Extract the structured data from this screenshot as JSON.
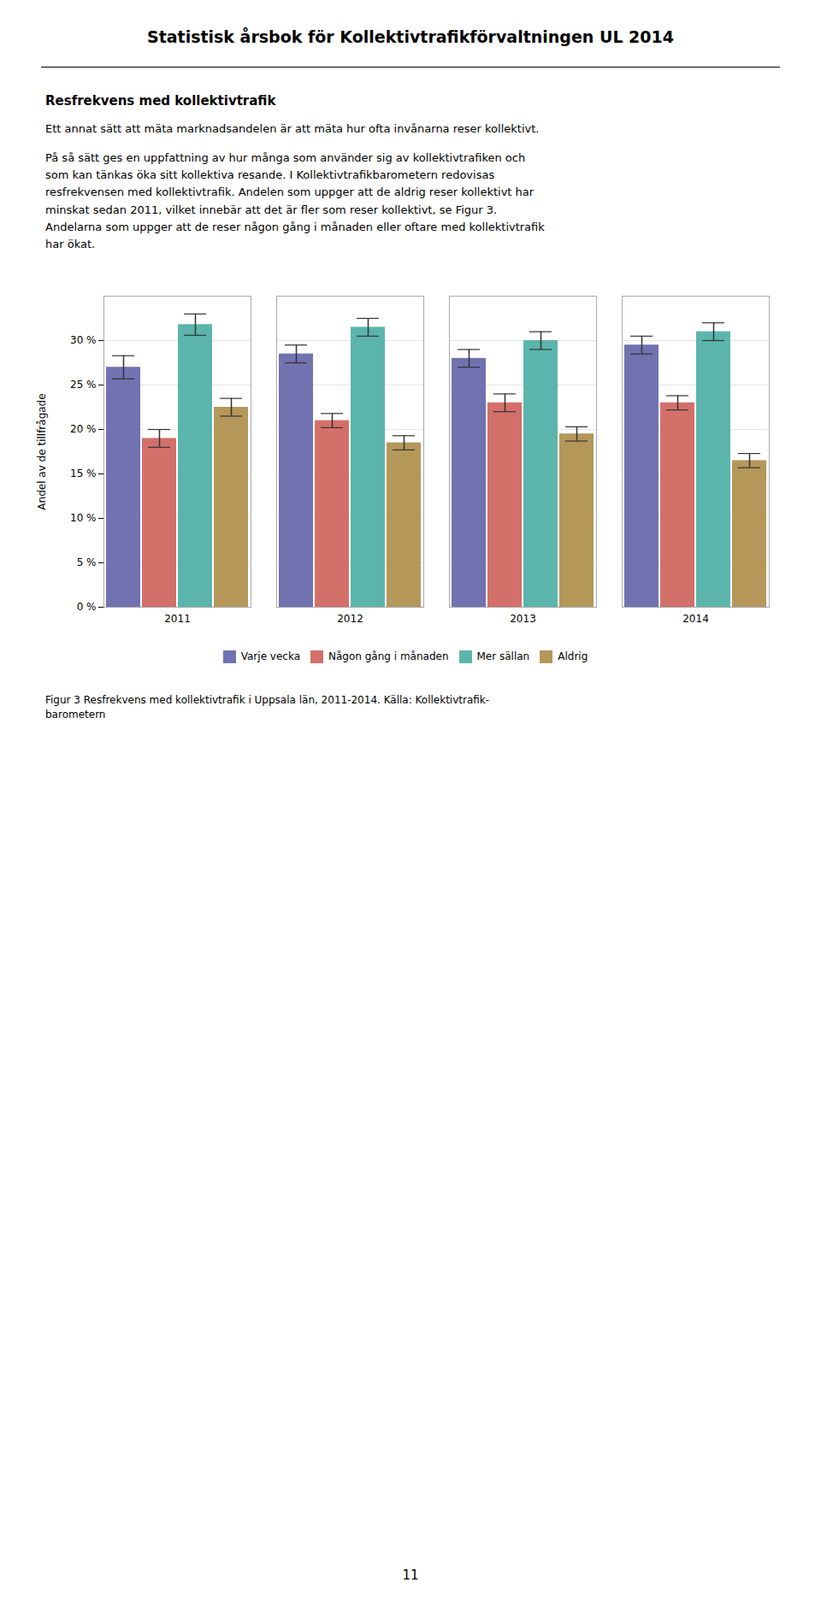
{
  "chart_data": {
    "type": "bar",
    "title": "Statistisk årsbok för Kollektivtrafikförvaltningen UL 2014",
    "subtitle": "Resfrekvens med kollektivtrafik",
    "annotations": [
      "Ett annat sätt att mäta marknadsandelen är att mäta hur ofta invånarna reser kollektivt.",
      "På så sätt ges en uppfattning av hur många som använder sig av kollektivtrafiken och\nsom kan tänkas öka sitt kollektiva resande. I Kollektivtrafikbarometern redovisas\nresfrekvensen med kollektivtrafik. Andelen som uppger att de aldrig reser kollektivt har\nminskat sedan 2011, vilket innebär att det är fler som reser kollektivt, se Figur 3.\nAndelarna som uppger att de reser någon gång i månaden eller oftare med kollektivtrafik\nhar ökat.",
      "Figur 3 Resfrekvens med kollektivtrafik i Uppsala län, 2011-2014. Källa: Kollektivtrafik-\nbarometern",
      "11"
    ],
    "ylabel": "Andel av de tillfrågade",
    "categories": [
      "2011",
      "2012",
      "2013",
      "2014"
    ],
    "series": [
      {
        "name": "Varje vecka",
        "color": "#7172b0",
        "values": [
          27.0,
          28.5,
          28.0,
          29.5
        ],
        "errors": [
          1.3,
          1.0,
          1.0,
          1.0
        ]
      },
      {
        "name": "Någon gång i månaden",
        "color": "#d4706a",
        "values": [
          19.0,
          21.0,
          23.0,
          23.0
        ],
        "errors": [
          1.0,
          0.8,
          1.0,
          0.8
        ]
      },
      {
        "name": "Mer sällan",
        "color": "#5bb5ac",
        "values": [
          31.8,
          31.5,
          30.0,
          31.0
        ],
        "errors": [
          1.2,
          1.0,
          1.0,
          1.0
        ]
      },
      {
        "name": "Aldrig",
        "color": "#b5975a",
        "values": [
          22.5,
          18.5,
          19.5,
          16.5
        ],
        "errors": [
          1.0,
          0.8,
          0.8,
          0.8
        ]
      }
    ],
    "ylim": [
      0,
      35
    ],
    "yticks": [
      {
        "value": 0,
        "label": "0 %"
      },
      {
        "value": 5,
        "label": "5 %"
      },
      {
        "value": 10,
        "label": "10 %"
      },
      {
        "value": 15,
        "label": "15 %"
      },
      {
        "value": 20,
        "label": "20 %"
      },
      {
        "value": 25,
        "label": "25 %"
      },
      {
        "value": 30,
        "label": "30 %"
      }
    ],
    "grid": true,
    "legend": "bottom"
  }
}
